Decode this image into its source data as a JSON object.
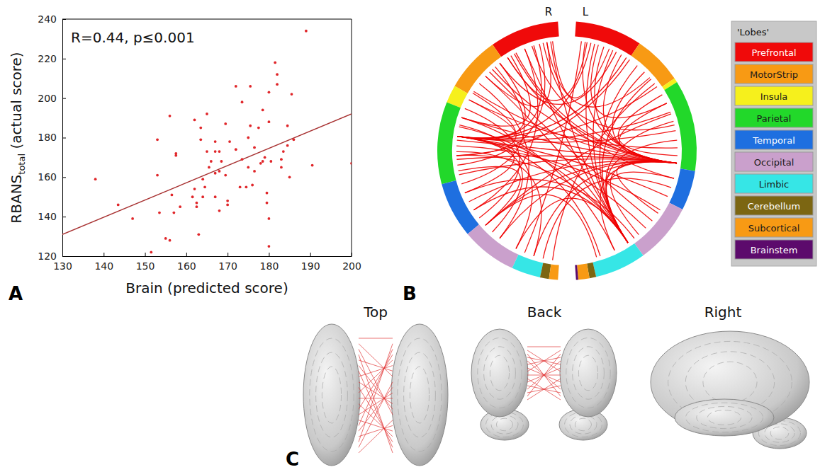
{
  "chart_data": [
    {
      "type": "scatter",
      "label": "A",
      "annotation": "R=0.44, p≤0.001",
      "xlabel": "Brain (predicted score)",
      "ylabel": {
        "text": "RBANS",
        "subscript": "total",
        "suffix": " (actual score)"
      },
      "color": "#e0262a",
      "marker": "point",
      "x": [
        138,
        143.5,
        147,
        151.5,
        153,
        153,
        153.5,
        155,
        156,
        156,
        156.5,
        157,
        157.5,
        157.5,
        158.5,
        161.5,
        162,
        162,
        162.5,
        162.5,
        163,
        163.5,
        163.5,
        164,
        164,
        164.5,
        165,
        165,
        165.5,
        166,
        167,
        167,
        167,
        167,
        168,
        168,
        168,
        168.5,
        169.5,
        169.5,
        170,
        170,
        170.5,
        172,
        172,
        173,
        173.5,
        173.5,
        174.5,
        175,
        175,
        175.5,
        175.5,
        176,
        176.5,
        176.5,
        177.5,
        178,
        178.5,
        178.5,
        179,
        179.5,
        179.5,
        180,
        180,
        180,
        180,
        180.5,
        181.5,
        182,
        182,
        183,
        183,
        183.5,
        184.5,
        184.5,
        185,
        185.5,
        186,
        189,
        190.5,
        200
      ],
      "values": [
        159,
        146,
        139,
        122,
        179,
        161,
        142,
        129,
        128,
        191,
        151,
        142,
        172,
        171,
        145,
        150,
        189,
        154,
        147,
        145,
        131,
        185,
        179,
        159,
        150,
        155,
        173,
        192,
        165,
        168,
        173,
        178,
        162,
        150,
        173,
        163,
        143,
        168,
        161,
        187,
        148,
        146,
        178,
        206,
        174,
        155,
        198,
        169,
        155,
        165,
        180,
        206,
        186,
        156,
        163,
        175,
        185,
        167,
        168,
        194,
        170,
        147,
        152,
        203,
        188,
        139,
        125,
        168,
        218,
        212,
        207,
        169,
        165,
        173,
        176,
        186,
        160,
        202,
        179,
        234,
        166,
        167
      ],
      "fit": {
        "x": [
          130,
          200
        ],
        "y": [
          131,
          192
        ],
        "color": "#a83232"
      },
      "xlim": [
        130,
        200
      ],
      "ylim": [
        120,
        240
      ],
      "xticks": [
        130,
        140,
        150,
        160,
        170,
        180,
        190,
        200
      ],
      "yticks": [
        120,
        140,
        160,
        180,
        200,
        220,
        240
      ]
    },
    {
      "type": "connectogram",
      "label": "B",
      "color": "#f00000",
      "legend": "right",
      "legend_title": "'Lobes'",
      "lobes": [
        {
          "name": "Prefrontal",
          "color": "#f00a0a"
        },
        {
          "name": "MotorStrip",
          "color": "#f89a14"
        },
        {
          "name": "Insula",
          "color": "#f6f01c"
        },
        {
          "name": "Parietal",
          "color": "#22d82a"
        },
        {
          "name": "Temporal",
          "color": "#1e6fe0"
        },
        {
          "name": "Occipital",
          "color": "#caa0cc"
        },
        {
          "name": "Limbic",
          "color": "#36e6e6"
        },
        {
          "name": "Cerebellum",
          "color": "#7c6612"
        },
        {
          "name": "Subcortical",
          "color": "#f89a14"
        },
        {
          "name": "Brainstem",
          "color": "#5c0a6c"
        }
      ],
      "hemispheres": [
        {
          "name": "L",
          "lobes": [
            "Prefrontal",
            "MotorStrip",
            "Insula",
            "Parietal",
            "Temporal",
            "Occipital",
            "Limbic",
            "Cerebellum",
            "Subcortical",
            "Brainstem"
          ],
          "sizes": [
            30,
            22,
            2,
            41,
            18,
            27,
            23,
            3,
            5,
            1
          ]
        },
        {
          "name": "R",
          "lobes": [
            "Prefrontal",
            "MotorStrip",
            "Insula",
            "Parietal",
            "Temporal",
            "Occipital",
            "Limbic",
            "Cerebellum",
            "Subcortical"
          ],
          "sizes": [
            31,
            25,
            8,
            37,
            25,
            25,
            13,
            4,
            4
          ]
        }
      ],
      "edges": [
        [
          92,
          180
        ],
        [
          92,
          195
        ],
        [
          92,
          210
        ],
        [
          92,
          225
        ],
        [
          92,
          240
        ],
        [
          92,
          252
        ],
        [
          92,
          262
        ],
        [
          92,
          270
        ],
        [
          92,
          285
        ],
        [
          92,
          300
        ],
        [
          92,
          15
        ],
        [
          92,
          25
        ],
        [
          92,
          40
        ],
        [
          92,
          60
        ],
        [
          92,
          120
        ],
        [
          92,
          135
        ],
        [
          92,
          150
        ],
        [
          92,
          310
        ],
        [
          92,
          330
        ],
        [
          92,
          200
        ],
        [
          92,
          5
        ],
        [
          142,
          10
        ],
        [
          142,
          20
        ],
        [
          142,
          35
        ],
        [
          142,
          45
        ],
        [
          142,
          70
        ],
        [
          142,
          80
        ],
        [
          142,
          176
        ],
        [
          142,
          190
        ],
        [
          142,
          215
        ],
        [
          142,
          245
        ],
        [
          142,
          260
        ],
        [
          142,
          290
        ],
        [
          142,
          320
        ],
        [
          142,
          100
        ],
        [
          250,
          8
        ],
        [
          250,
          28
        ],
        [
          250,
          50
        ],
        [
          250,
          65
        ],
        [
          250,
          75
        ],
        [
          250,
          110
        ],
        [
          250,
          130
        ],
        [
          250,
          158
        ],
        [
          250,
          185
        ],
        [
          250,
          205
        ],
        [
          250,
          230
        ],
        [
          250,
          280
        ],
        [
          250,
          305
        ],
        [
          12,
          60
        ],
        [
          18,
          175
        ],
        [
          22,
          205
        ],
        [
          30,
          260
        ],
        [
          44,
          178
        ],
        [
          55,
          88
        ],
        [
          66,
          300
        ],
        [
          72,
          186
        ],
        [
          84,
          230
        ],
        [
          100,
          196
        ],
        [
          118,
          255
        ],
        [
          125,
          212
        ],
        [
          138,
          280
        ],
        [
          150,
          240
        ],
        [
          160,
          300
        ],
        [
          178,
          215
        ],
        [
          182,
          265
        ],
        [
          190,
          290
        ],
        [
          198,
          240
        ],
        [
          208,
          275
        ],
        [
          220,
          310
        ],
        [
          226,
          260
        ],
        [
          235,
          295
        ],
        [
          244,
          320
        ],
        [
          258,
          330
        ],
        [
          268,
          300
        ],
        [
          3,
          325
        ],
        [
          6,
          200
        ],
        [
          48,
          340
        ],
        [
          105,
          335
        ]
      ]
    },
    {
      "type": "brain_views",
      "label": "C",
      "views": [
        "Top",
        "Back",
        "Right"
      ]
    }
  ]
}
